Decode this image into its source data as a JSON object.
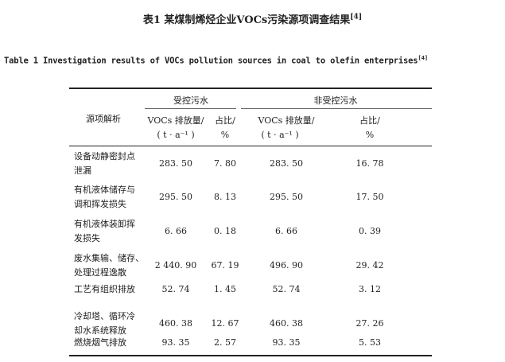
{
  "caption_cn": {
    "text": "表1 某煤制烯烃企业VOCs污染源项调查结果",
    "ref": "[4]"
  },
  "caption_en": {
    "text": "Table 1 Investigation results of VOCs pollution sources in coal to olefin enterprises",
    "ref": "[4]"
  },
  "header": {
    "source": "源项解析",
    "group_controlled": "受控污水",
    "group_uncontrolled": "非受控污水",
    "emission": "VOCs 排放量/",
    "emission_unit": "( t · a⁻¹ )",
    "ratio": "占比/",
    "ratio_unit": "%"
  },
  "rows": [
    {
      "name": [
        "设备动静密封点",
        "泄漏"
      ],
      "c_emission": "283. 50",
      "c_ratio": "7. 80",
      "u_emission": "283. 50",
      "u_ratio": "16. 78"
    },
    {
      "name": [
        "有机液体储存与",
        "调和挥发损失"
      ],
      "c_emission": "295. 50",
      "c_ratio": "8. 13",
      "u_emission": "295. 50",
      "u_ratio": "17. 50"
    },
    {
      "name": [
        "有机液体装卸挥",
        "发损失"
      ],
      "c_emission": "6. 66",
      "c_ratio": "0. 18",
      "u_emission": "6. 66",
      "u_ratio": "0. 39"
    },
    {
      "name": [
        "废水集输、储存、",
        "处理过程逸散"
      ],
      "c_emission": "2 440. 90",
      "c_ratio": "67. 19",
      "u_emission": "496. 90",
      "u_ratio": "29. 42"
    },
    {
      "name": [
        "工艺有组织排放"
      ],
      "c_emission": "52. 74",
      "c_ratio": "1. 45",
      "u_emission": "52. 74",
      "u_ratio": "3. 12"
    },
    {
      "name": [
        "冷却塔、循环冷",
        "却水系统释放"
      ],
      "c_emission": "460. 38",
      "c_ratio": "12. 67",
      "u_emission": "460. 38",
      "u_ratio": "27. 26"
    },
    {
      "name": [
        "燃烧烟气排放"
      ],
      "c_emission": "93. 35",
      "c_ratio": "2. 57",
      "u_emission": "93. 35",
      "u_ratio": "5. 53"
    }
  ]
}
